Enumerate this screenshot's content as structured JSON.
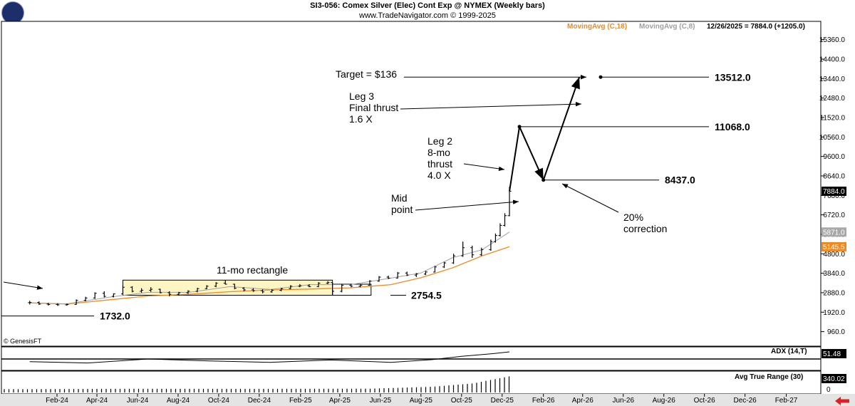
{
  "header": {
    "title": "SI3-056:  Comex Silver (Elec) Cont Exp @ NYMEX  (Weekly bars)",
    "subtitle": "www.TradeNavigator.com © 1999-2025"
  },
  "legend": {
    "ma18_label": "MovingAvg (C,18)",
    "ma8_label": "MovingAvg (C,8)",
    "last_quote": "12/26/2025 = 7884.0 (+1205.0)"
  },
  "copyright": "© GenesisFT",
  "colors": {
    "ma18": "#f08a1e",
    "ma8": "#a0a0a0",
    "price_bar": "#000000",
    "rectangle_fill": "#fdf6c3",
    "price_flag": "#000000",
    "ma18_flag": "#f08a1e",
    "ma8_flag": "#a8a8a8",
    "panel_label_bg": "#000000",
    "scroll_arrow": "#e02020"
  },
  "chart_data": {
    "type": "line",
    "title": "SI3-056:  Comex Silver (Elec) Cont Exp @ NYMEX  (Weekly bars)",
    "ylim": [
      0,
      16080
    ],
    "x_range": [
      "2024-01",
      "2027-02"
    ],
    "x_ticks": [
      "Feb-24",
      "Apr-24",
      "Jun-24",
      "Aug-24",
      "Oct-24",
      "Dec-24",
      "Feb-25",
      "Apr-25",
      "Jun-25",
      "Aug-25",
      "Oct-25",
      "Dec-25",
      "Feb-26",
      "Apr-26",
      "Jun-26",
      "Aug-26",
      "Oct-26",
      "Dec-26",
      "Feb-27"
    ],
    "y_ticks": [
      "15360.0",
      "14400.0",
      "13440.0",
      "12480.0",
      "11520.0",
      "10560.0",
      "9600.0",
      "8640.0",
      "7680.0",
      "6720.0",
      "5760.0",
      "4800.0",
      "3840.0",
      "2880.0",
      "1920.0",
      "960.0"
    ],
    "y_tick_values": [
      15360,
      14400,
      13440,
      12480,
      11520,
      10560,
      9600,
      8640,
      7680,
      6720,
      5760,
      4800,
      3840,
      2880,
      1920,
      960
    ],
    "last_price_label": "7884.0",
    "last_price": 7884,
    "ma8_label": "5871.0",
    "ma8_last": 5871,
    "ma18_label": "5145.5",
    "ma18_last": 5145.5,
    "series": [
      {
        "name": "MovingAvg (C,18)",
        "x": [
          "2024-01-05",
          "2024-03-01",
          "2024-05-01",
          "2024-07-01",
          "2024-09-01",
          "2024-11-01",
          "2025-01-01",
          "2025-03-01",
          "2025-05-01",
          "2025-07-01",
          "2025-08-15",
          "2025-10-01",
          "2025-11-15",
          "2025-12-26"
        ],
        "values": [
          2380,
          2320,
          2520,
          2720,
          2800,
          2930,
          3020,
          3060,
          3120,
          3280,
          3620,
          4100,
          4700,
          5145.5
        ]
      },
      {
        "name": "MovingAvg (C,8)",
        "x": [
          "2024-01-05",
          "2024-03-01",
          "2024-05-01",
          "2024-07-01",
          "2024-09-01",
          "2024-11-01",
          "2025-01-01",
          "2025-03-01",
          "2025-05-01",
          "2025-07-01",
          "2025-08-15",
          "2025-10-01",
          "2025-11-15",
          "2025-12-26"
        ],
        "values": [
          2380,
          2330,
          2650,
          2900,
          2900,
          3180,
          3040,
          3280,
          3280,
          3600,
          3850,
          4600,
          5000,
          5871
        ]
      }
    ],
    "price_bars": [
      {
        "x": "2024-01-05",
        "o": 2390,
        "h": 2480,
        "l": 2300,
        "c": 2400
      },
      {
        "x": "2024-01-19",
        "o": 2400,
        "h": 2450,
        "l": 2280,
        "c": 2320
      },
      {
        "x": "2024-02-02",
        "o": 2320,
        "h": 2380,
        "l": 2250,
        "c": 2300
      },
      {
        "x": "2024-02-16",
        "o": 2300,
        "h": 2360,
        "l": 2230,
        "c": 2280
      },
      {
        "x": "2024-03-01",
        "o": 2280,
        "h": 2350,
        "l": 2240,
        "c": 2300
      },
      {
        "x": "2024-03-15",
        "o": 2300,
        "h": 2550,
        "l": 2280,
        "c": 2500
      },
      {
        "x": "2024-03-29",
        "o": 2500,
        "h": 2680,
        "l": 2450,
        "c": 2620
      },
      {
        "x": "2024-04-12",
        "o": 2620,
        "h": 2900,
        "l": 2580,
        "c": 2850
      },
      {
        "x": "2024-04-26",
        "o": 2850,
        "h": 2950,
        "l": 2650,
        "c": 2700
      },
      {
        "x": "2024-05-10",
        "o": 2700,
        "h": 2850,
        "l": 2650,
        "c": 2820
      },
      {
        "x": "2024-05-24",
        "o": 2820,
        "h": 3250,
        "l": 2800,
        "c": 3150
      },
      {
        "x": "2024-06-07",
        "o": 3150,
        "h": 3200,
        "l": 2900,
        "c": 2950
      },
      {
        "x": "2024-06-21",
        "o": 2950,
        "h": 3100,
        "l": 2880,
        "c": 3000
      },
      {
        "x": "2024-07-05",
        "o": 3000,
        "h": 3150,
        "l": 2920,
        "c": 3050
      },
      {
        "x": "2024-07-19",
        "o": 3050,
        "h": 3080,
        "l": 2850,
        "c": 2880
      },
      {
        "x": "2024-08-02",
        "o": 2880,
        "h": 2950,
        "l": 2700,
        "c": 2800
      },
      {
        "x": "2024-08-16",
        "o": 2800,
        "h": 2920,
        "l": 2750,
        "c": 2880
      },
      {
        "x": "2024-08-30",
        "o": 2880,
        "h": 3000,
        "l": 2820,
        "c": 2950
      },
      {
        "x": "2024-09-13",
        "o": 2950,
        "h": 3120,
        "l": 2900,
        "c": 3080
      },
      {
        "x": "2024-09-27",
        "o": 3080,
        "h": 3250,
        "l": 3050,
        "c": 3200
      },
      {
        "x": "2024-10-11",
        "o": 3200,
        "h": 3400,
        "l": 3150,
        "c": 3350
      },
      {
        "x": "2024-10-25",
        "o": 3350,
        "h": 3500,
        "l": 3280,
        "c": 3300
      },
      {
        "x": "2024-11-08",
        "o": 3300,
        "h": 3320,
        "l": 3050,
        "c": 3100
      },
      {
        "x": "2024-11-22",
        "o": 3100,
        "h": 3150,
        "l": 2950,
        "c": 3020
      },
      {
        "x": "2024-12-06",
        "o": 3020,
        "h": 3100,
        "l": 2920,
        "c": 2980
      },
      {
        "x": "2024-12-20",
        "o": 2980,
        "h": 3050,
        "l": 2850,
        "c": 2920
      },
      {
        "x": "2025-01-03",
        "o": 2920,
        "h": 3050,
        "l": 2880,
        "c": 3000
      },
      {
        "x": "2025-01-17",
        "o": 3000,
        "h": 3120,
        "l": 2950,
        "c": 3080
      },
      {
        "x": "2025-01-31",
        "o": 3080,
        "h": 3250,
        "l": 3050,
        "c": 3200
      },
      {
        "x": "2025-02-14",
        "o": 3200,
        "h": 3300,
        "l": 3150,
        "c": 3220
      },
      {
        "x": "2025-02-28",
        "o": 3220,
        "h": 3300,
        "l": 3150,
        "c": 3180
      },
      {
        "x": "2025-03-14",
        "o": 3180,
        "h": 3400,
        "l": 3150,
        "c": 3350
      },
      {
        "x": "2025-03-28",
        "o": 3350,
        "h": 3450,
        "l": 3300,
        "c": 3380
      },
      {
        "x": "2025-04-04",
        "o": 3380,
        "h": 3400,
        "l": 2754.5,
        "c": 2950
      },
      {
        "x": "2025-04-18",
        "o": 2950,
        "h": 3300,
        "l": 2900,
        "c": 3250
      },
      {
        "x": "2025-05-02",
        "o": 3250,
        "h": 3320,
        "l": 3150,
        "c": 3200
      },
      {
        "x": "2025-05-16",
        "o": 3200,
        "h": 3300,
        "l": 3150,
        "c": 3250
      },
      {
        "x": "2025-05-30",
        "o": 3250,
        "h": 3500,
        "l": 3220,
        "c": 3450
      },
      {
        "x": "2025-06-13",
        "o": 3450,
        "h": 3700,
        "l": 3420,
        "c": 3650
      },
      {
        "x": "2025-06-27",
        "o": 3650,
        "h": 3720,
        "l": 3550,
        "c": 3600
      },
      {
        "x": "2025-07-11",
        "o": 3600,
        "h": 3900,
        "l": 3580,
        "c": 3850
      },
      {
        "x": "2025-07-25",
        "o": 3850,
        "h": 3920,
        "l": 3700,
        "c": 3750
      },
      {
        "x": "2025-08-08",
        "o": 3750,
        "h": 3850,
        "l": 3650,
        "c": 3800
      },
      {
        "x": "2025-08-22",
        "o": 3800,
        "h": 3950,
        "l": 3750,
        "c": 3900
      },
      {
        "x": "2025-09-05",
        "o": 3900,
        "h": 4200,
        "l": 3880,
        "c": 4150
      },
      {
        "x": "2025-09-19",
        "o": 4150,
        "h": 4400,
        "l": 4100,
        "c": 4350
      },
      {
        "x": "2025-10-03",
        "o": 4350,
        "h": 4800,
        "l": 4300,
        "c": 4700
      },
      {
        "x": "2025-10-17",
        "o": 4700,
        "h": 5400,
        "l": 4650,
        "c": 5100
      },
      {
        "x": "2025-10-31",
        "o": 5100,
        "h": 5200,
        "l": 4600,
        "c": 4750
      },
      {
        "x": "2025-11-14",
        "o": 4750,
        "h": 5100,
        "l": 4700,
        "c": 5000
      },
      {
        "x": "2025-11-28",
        "o": 5000,
        "h": 5500,
        "l": 4950,
        "c": 5400
      },
      {
        "x": "2025-12-05",
        "o": 5400,
        "h": 5800,
        "l": 5350,
        "c": 5700
      },
      {
        "x": "2025-12-12",
        "o": 5700,
        "h": 6300,
        "l": 5650,
        "c": 6200
      },
      {
        "x": "2025-12-19",
        "o": 6200,
        "h": 6800,
        "l": 6150,
        "c": 6679
      },
      {
        "x": "2025-12-26",
        "o": 6679,
        "h": 8100,
        "l": 6650,
        "c": 7884
      }
    ],
    "projection_path": [
      {
        "x": "2025-12-26",
        "y": 7884
      },
      {
        "x": "2026-01-10",
        "y": 11068
      },
      {
        "x": "2026-02-15",
        "y": 8437
      },
      {
        "x": "2026-04-10",
        "y": 13512
      }
    ],
    "rectangle": {
      "x_start": "2024-05-24",
      "x_end": "2025-04-04",
      "y_low": 2754.5,
      "y_high": 3500,
      "label": "11-mo rectangle"
    },
    "pullback_box": {
      "x_start": "2025-04-04",
      "x_end": "2025-06-01",
      "y_low": 2754.5,
      "y_high": 3300
    },
    "levels": [
      {
        "label": "1732.0",
        "value": 1732
      },
      {
        "label": "2754.5",
        "value": 2754.5
      },
      {
        "label": "8437.0",
        "value": 8437
      },
      {
        "label": "11068.0",
        "value": 11068
      },
      {
        "label": "13512.0",
        "value": 13512
      }
    ],
    "annotations": {
      "target": "Target = $136",
      "leg3": [
        "Leg 3",
        "Final thrust",
        "1.6 X"
      ],
      "leg2": [
        "Leg 2",
        "8-mo",
        "thrust",
        "4.0 X"
      ],
      "midpoint": [
        "Mid",
        "point"
      ],
      "correction": [
        "20%",
        "correction"
      ]
    },
    "adx": {
      "label": "ADX (14,T)",
      "last_label": "51.48",
      "last": 51.48,
      "x": [
        "2024-01-05",
        "2024-04-01",
        "2024-07-01",
        "2024-10-01",
        "2025-01-01",
        "2025-04-01",
        "2025-07-01",
        "2025-09-01",
        "2025-10-15",
        "2025-12-01",
        "2025-12-26"
      ],
      "values": [
        22,
        18,
        30,
        24,
        20,
        27,
        20,
        28,
        38,
        46,
        51.48
      ]
    },
    "atr": {
      "label": "Avg True Range (30)",
      "last_label": "340.02",
      "last": 340.02,
      "x": [
        "2024-01-05",
        "2024-06-01",
        "2024-12-01",
        "2025-06-01",
        "2025-09-01",
        "2025-11-01",
        "2025-12-26"
      ],
      "values": [
        70,
        78,
        76,
        80,
        120,
        190,
        340.02
      ]
    }
  }
}
